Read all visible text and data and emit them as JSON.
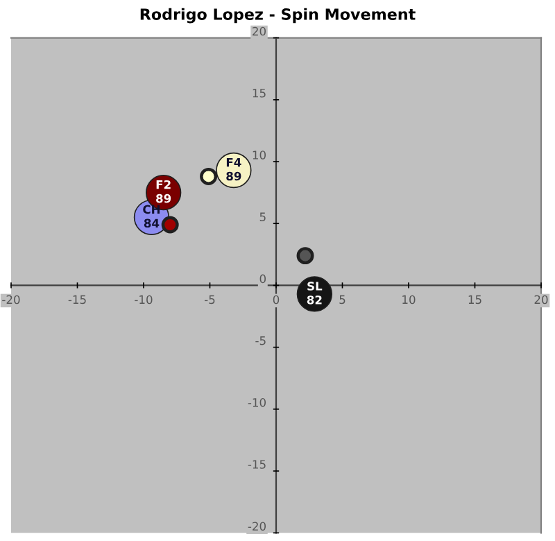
{
  "chart_data": {
    "type": "bubble",
    "title": "Rodrigo Lopez - Spin Movement",
    "x": [
      -9.4,
      -8.5,
      -8.0,
      -5.1,
      -3.2,
      2.2,
      2.9
    ],
    "values": [
      5.5,
      7.5,
      4.9,
      8.8,
      9.3,
      2.4,
      -0.7
    ],
    "sizes": [
      1,
      1,
      0.17,
      0.17,
      1,
      0.17,
      1
    ],
    "colors": [
      "#8c8cf0",
      "#7a0000",
      "#a00000",
      "#ffffcc",
      "#f6f2c4",
      "#555555",
      "#151515"
    ],
    "xlim": [
      -20,
      20
    ],
    "ylim": [
      -20,
      20
    ],
    "xticks": [
      -20,
      -15,
      -10,
      -5,
      0,
      5,
      10,
      15,
      20
    ],
    "yticks": [
      -20,
      -15,
      -10,
      -5,
      0,
      5,
      10,
      15,
      20
    ],
    "grid": false,
    "legend": false,
    "annotations": [
      {
        "text": "CH\n84",
        "x": -9.4,
        "y": 5.5
      },
      {
        "text": "F2\n89",
        "x": -8.5,
        "y": 7.5
      },
      {
        "text": "F4\n89",
        "x": -3.2,
        "y": 9.3
      },
      {
        "text": "SL\n82",
        "x": 2.9,
        "y": -0.7
      }
    ]
  }
}
